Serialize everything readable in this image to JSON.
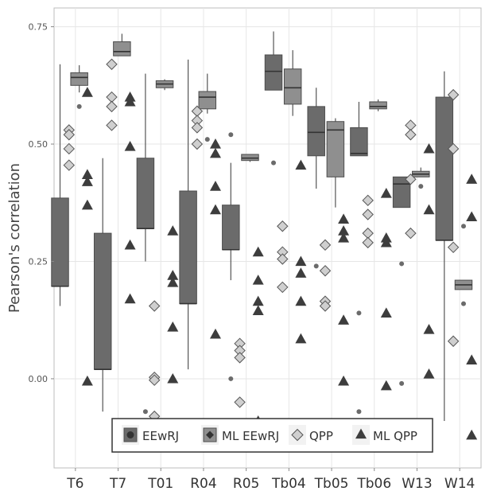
{
  "chart_data": {
    "type": "boxplot",
    "title": "",
    "xlabel": "",
    "ylabel": "Pearson's correlation",
    "ylim": [
      -0.19,
      0.79
    ],
    "y_ticks": [
      {
        "value": 0.0,
        "label": "0.00"
      },
      {
        "value": 0.25,
        "label": "0.25"
      },
      {
        "value": 0.5,
        "label": "0.50"
      },
      {
        "value": 0.75,
        "label": "0.75"
      }
    ],
    "categories": [
      "T6",
      "T7",
      "T01",
      "R04",
      "R05",
      "Tb04",
      "Tb05",
      "Tb06",
      "W13",
      "W14"
    ],
    "grid": true,
    "legend_position": "bottom",
    "legend": [
      {
        "label": "EEwRJ",
        "shape": "circle"
      },
      {
        "label": "ML EEwRJ",
        "shape": "diamond-dark"
      },
      {
        "label": "QPP",
        "shape": "diamond-light"
      },
      {
        "label": "ML QPP",
        "shape": "triangle"
      }
    ],
    "colors": {
      "eewrj_box": "#6b6b6b",
      "ml_eewrj_box": "#8f8f8f",
      "qpp_point": "#cfcfcf",
      "ml_qpp_point": "#3d3d3d",
      "outlier": "#6b6b6b",
      "grid": "#e6e6e6"
    },
    "series": [
      {
        "name": "EEwRJ",
        "kind": "box",
        "boxes": [
          {
            "category": "T6",
            "min": 0.155,
            "q1": 0.197,
            "median": 0.197,
            "q3": 0.385,
            "max": 0.67,
            "outliers": []
          },
          {
            "category": "T7",
            "min": -0.07,
            "q1": 0.02,
            "median": 0.02,
            "q3": 0.31,
            "max": 0.47,
            "outliers": []
          },
          {
            "category": "T01",
            "min": 0.25,
            "q1": 0.32,
            "median": 0.32,
            "q3": 0.47,
            "max": 0.65,
            "outliers": [
              -0.07
            ]
          },
          {
            "category": "R04",
            "min": 0.02,
            "q1": 0.16,
            "median": 0.16,
            "q3": 0.4,
            "max": 0.68,
            "outliers": []
          },
          {
            "category": "R05",
            "min": 0.21,
            "q1": 0.275,
            "median": 0.275,
            "q3": 0.37,
            "max": 0.46,
            "outliers": [
              0.52,
              0.0
            ]
          },
          {
            "category": "Tb04",
            "min": 0.615,
            "q1": 0.615,
            "median": 0.655,
            "q3": 0.69,
            "max": 0.74,
            "outliers": [
              0.46
            ]
          },
          {
            "category": "Tb05",
            "min": 0.405,
            "q1": 0.475,
            "median": 0.525,
            "q3": 0.58,
            "max": 0.62,
            "outliers": [
              0.24
            ]
          },
          {
            "category": "Tb06",
            "min": 0.475,
            "q1": 0.475,
            "median": 0.48,
            "q3": 0.535,
            "max": 0.59,
            "outliers": [
              0.14,
              -0.07
            ]
          },
          {
            "category": "W13",
            "min": 0.365,
            "q1": 0.365,
            "median": 0.415,
            "q3": 0.43,
            "max": 0.43,
            "outliers": [
              0.245,
              -0.01
            ]
          },
          {
            "category": "W14",
            "min": -0.09,
            "q1": 0.295,
            "median": 0.295,
            "q3": 0.6,
            "max": 0.655,
            "outliers": []
          }
        ]
      },
      {
        "name": "ML EEwRJ",
        "kind": "box",
        "boxes": [
          {
            "category": "T6",
            "min": 0.61,
            "q1": 0.625,
            "median": 0.642,
            "q3": 0.652,
            "max": 0.668,
            "outliers": [
              0.58
            ]
          },
          {
            "category": "T7",
            "min": 0.688,
            "q1": 0.688,
            "median": 0.697,
            "q3": 0.718,
            "max": 0.735,
            "outliers": []
          },
          {
            "category": "T01",
            "min": 0.615,
            "q1": 0.62,
            "median": 0.628,
            "q3": 0.635,
            "max": 0.638,
            "outliers": []
          },
          {
            "category": "R04",
            "min": 0.565,
            "q1": 0.575,
            "median": 0.6,
            "q3": 0.612,
            "max": 0.65,
            "outliers": [
              0.51
            ]
          },
          {
            "category": "R05",
            "min": 0.462,
            "q1": 0.465,
            "median": 0.47,
            "q3": 0.478,
            "max": 0.478,
            "outliers": []
          },
          {
            "category": "Tb04",
            "min": 0.56,
            "q1": 0.585,
            "median": 0.62,
            "q3": 0.66,
            "max": 0.7,
            "outliers": []
          },
          {
            "category": "Tb05",
            "min": 0.365,
            "q1": 0.43,
            "median": 0.53,
            "q3": 0.548,
            "max": 0.555,
            "outliers": []
          },
          {
            "category": "Tb06",
            "min": 0.57,
            "q1": 0.575,
            "median": 0.58,
            "q3": 0.59,
            "max": 0.595,
            "outliers": []
          },
          {
            "category": "W13",
            "min": 0.43,
            "q1": 0.43,
            "median": 0.436,
            "q3": 0.442,
            "max": 0.45,
            "outliers": [
              0.41
            ]
          },
          {
            "category": "W14",
            "min": 0.19,
            "q1": 0.19,
            "median": 0.2,
            "q3": 0.21,
            "max": 0.21,
            "outliers": [
              0.325,
              0.16
            ]
          }
        ]
      },
      {
        "name": "QPP",
        "kind": "points",
        "shape": "diamond",
        "points": [
          {
            "category": "T6",
            "values": [
              0.53,
              0.52,
              0.49,
              0.455
            ]
          },
          {
            "category": "T7",
            "values": [
              0.67,
              0.6,
              0.58,
              0.54
            ]
          },
          {
            "category": "T01",
            "values": [
              0.155,
              0.003,
              -0.003,
              -0.08
            ]
          },
          {
            "category": "R04",
            "values": [
              0.57,
              0.55,
              0.535,
              0.5
            ]
          },
          {
            "category": "R05",
            "values": [
              0.075,
              0.06,
              0.045,
              -0.05
            ]
          },
          {
            "category": "Tb04",
            "values": [
              0.325,
              0.27,
              0.255,
              0.195
            ]
          },
          {
            "category": "Tb05",
            "values": [
              0.285,
              0.23,
              0.165,
              0.155
            ]
          },
          {
            "category": "Tb06",
            "values": [
              0.38,
              0.35,
              0.31,
              0.29
            ]
          },
          {
            "category": "W13",
            "values": [
              0.54,
              0.52,
              0.425,
              0.31
            ]
          },
          {
            "category": "W14",
            "values": [
              0.605,
              0.49,
              0.28,
              0.08
            ]
          }
        ]
      },
      {
        "name": "ML QPP",
        "kind": "points",
        "shape": "triangle",
        "points": [
          {
            "category": "T6",
            "values": [
              0.61,
              0.435,
              0.42,
              0.37,
              -0.005
            ]
          },
          {
            "category": "T7",
            "values": [
              0.6,
              0.59,
              0.495,
              0.285,
              0.17
            ]
          },
          {
            "category": "T01",
            "values": [
              0.315,
              0.22,
              0.205,
              0.11,
              0.0
            ]
          },
          {
            "category": "R04",
            "values": [
              0.5,
              0.48,
              0.41,
              0.36,
              0.095
            ]
          },
          {
            "category": "R05",
            "values": [
              0.27,
              0.21,
              0.165,
              0.145,
              -0.09
            ]
          },
          {
            "category": "Tb04",
            "values": [
              0.455,
              0.25,
              0.225,
              0.165,
              0.085
            ]
          },
          {
            "category": "Tb05",
            "values": [
              0.34,
              0.315,
              0.3,
              0.125,
              -0.005
            ]
          },
          {
            "category": "Tb06",
            "values": [
              0.395,
              0.3,
              0.29,
              0.14,
              -0.015
            ]
          },
          {
            "category": "W13",
            "values": [
              0.49,
              0.36,
              0.105,
              0.01
            ]
          },
          {
            "category": "W14",
            "values": [
              0.425,
              0.345,
              0.04,
              -0.12
            ]
          }
        ]
      }
    ]
  }
}
